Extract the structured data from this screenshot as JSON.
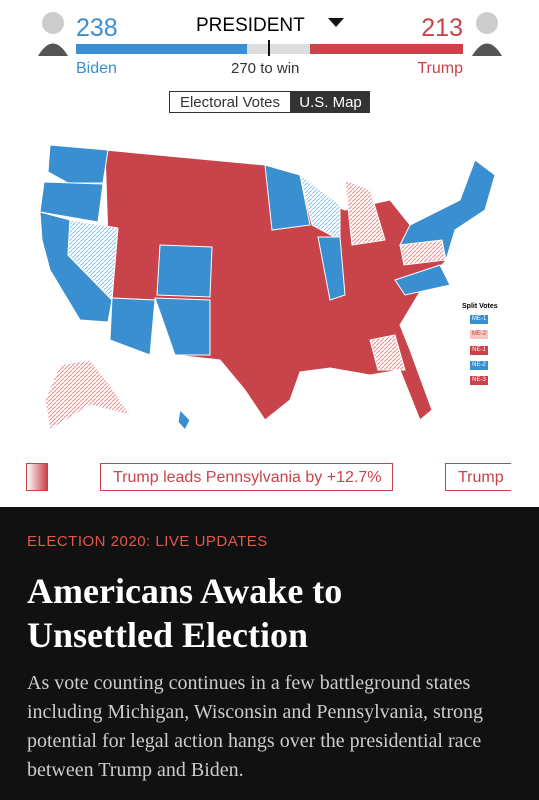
{
  "header": {
    "race": "PRESIDENT",
    "biden": {
      "name": "Biden",
      "votes": 238
    },
    "trump": {
      "name": "Trump",
      "votes": 213
    },
    "threshold": "270 to win"
  },
  "tabs": [
    "Electoral Votes",
    "U.S. Map"
  ],
  "split_votes": {
    "title": "Split Votes",
    "items": [
      "ME-1",
      "ME-2",
      "NE-1",
      "NE-2",
      "NE-3"
    ]
  },
  "ticker": [
    "Trump leads Pennsylvania by +12.7%",
    "Trump"
  ],
  "article": {
    "kicker": "ELECTION 2020: LIVE UPDATES",
    "headline": "Americans Awake to Unsettled Election",
    "summary": "As vote counting continues in a few battleground states including Michigan, Wisconsin and Pennsylvania, strong potential for legal action hangs over the presidential race between Trump and Biden."
  }
}
